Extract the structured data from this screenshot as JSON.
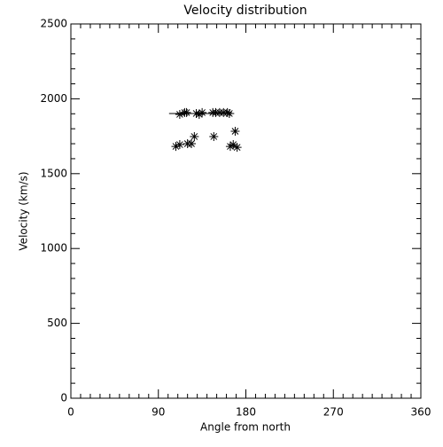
{
  "chart_data": {
    "type": "scatter",
    "title": "Velocity distribution",
    "xlabel": "Angle from north",
    "ylabel": "Velocity (km/s)",
    "xlim": [
      0,
      360
    ],
    "ylim": [
      0,
      2500
    ],
    "xticks": [
      0,
      90,
      180,
      270,
      360
    ],
    "yticks": [
      0,
      500,
      1000,
      1500,
      2000,
      2500
    ],
    "xminorticks": [
      10,
      20,
      30,
      40,
      50,
      60,
      70,
      80,
      100,
      110,
      120,
      130,
      140,
      150,
      160,
      170,
      190,
      200,
      210,
      220,
      230,
      240,
      250,
      260,
      280,
      290,
      300,
      310,
      320,
      330,
      340,
      350
    ],
    "yminorticks": [
      100,
      200,
      300,
      400,
      600,
      700,
      800,
      900,
      1100,
      1200,
      1300,
      1400,
      1600,
      1700,
      1800,
      1900,
      2100,
      2200,
      2300,
      2400
    ],
    "series": [
      {
        "marker": "asterisk",
        "color": "#000000",
        "x": [
          112,
          117,
          119,
          129,
          132,
          135,
          146,
          149,
          153,
          157,
          161,
          163,
          108,
          112,
          120,
          124,
          127,
          147,
          169,
          164,
          167,
          171
        ],
        "values": [
          1896,
          1908,
          1908,
          1902,
          1896,
          1908,
          1908,
          1908,
          1908,
          1908,
          1908,
          1902,
          1682,
          1694,
          1700,
          1700,
          1748,
          1748,
          1783,
          1682,
          1694,
          1676
        ]
      },
      {
        "marker": "none",
        "color": "#000000",
        "x": [
          101,
          168
        ],
        "values": [
          1902,
          1902
        ]
      }
    ]
  }
}
